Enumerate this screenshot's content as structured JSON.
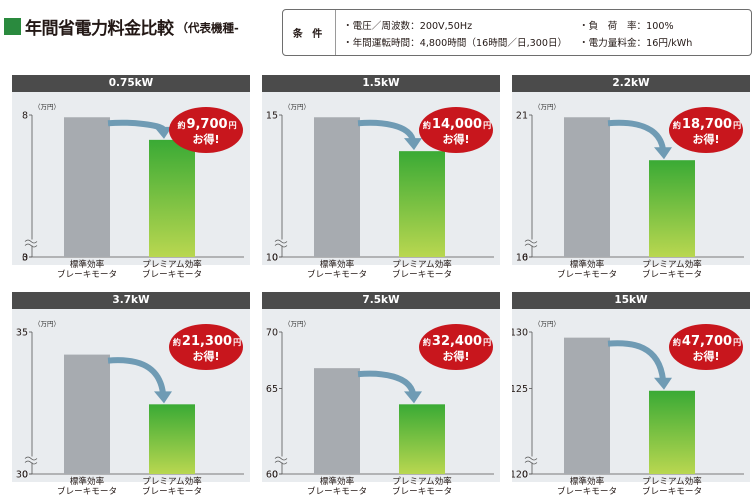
{
  "title": "年間省電力料金比較",
  "title_sub": "（代表機種-",
  "conditions": {
    "label": "条 件",
    "lines": [
      "・電圧／周波数：200V,50Hz",
      "・年間運転時間：4,800時間（16時間／日,300日）",
      "・負　荷　率：100%",
      "・電力量料金：16円/kWh"
    ]
  },
  "unit_label": "（万円）",
  "categories": [
    "標準効率\nブレーキモータ",
    "プレミアム効率\nブレーキモータ"
  ],
  "badge_prefix": "約",
  "badge_suffix": "円",
  "badge_line2": "お得!",
  "colors": {
    "standard_bar": "#a7abb0",
    "premium_bar_top": "#3aaa35",
    "premium_bar_bottom": "#b9d750",
    "badge": "#c8161d",
    "arrow": "#6f9bb4",
    "header": "#4b4b4b",
    "panel": "#e9ecef"
  },
  "chart_data": [
    {
      "type": "bar",
      "title": "0.75kW",
      "categories": [
        "標準効率ブレーキモータ",
        "プレミアム効率ブレーキモータ"
      ],
      "values": [
        7.9,
        6.9
      ],
      "ylim": [
        0,
        8
      ],
      "axis_break": [
        0,
        3
      ],
      "yticks": [
        "8",
        "3",
        "0"
      ],
      "ylabel": "（万円）",
      "saving": "9,700"
    },
    {
      "type": "bar",
      "title": "1.5kW",
      "categories": [
        "標準効率ブレーキモータ",
        "プレミアム効率ブレーキモータ"
      ],
      "values": [
        14.9,
        13.4
      ],
      "ylim": [
        0,
        15
      ],
      "axis_break": [
        0,
        10
      ],
      "yticks": [
        "15",
        "10",
        "0"
      ],
      "ylabel": "（万円）",
      "saving": "14,000"
    },
    {
      "type": "bar",
      "title": "2.2kW",
      "categories": [
        "標準効率ブレーキモータ",
        "プレミアム効率ブレーキモータ"
      ],
      "values": [
        20.9,
        19.0
      ],
      "ylim": [
        0,
        21
      ],
      "axis_break": [
        0,
        16
      ],
      "yticks": [
        "21",
        "16",
        "0"
      ],
      "ylabel": "（万円）",
      "saving": "18,700"
    },
    {
      "type": "bar",
      "title": "3.7kW",
      "categories": [
        "標準効率ブレーキモータ",
        "プレミアム効率ブレーキモータ"
      ],
      "values": [
        34.0,
        31.8
      ],
      "ylim": [
        0,
        35
      ],
      "axis_break": [
        0,
        30
      ],
      "yticks": [
        "35",
        "30",
        "0"
      ],
      "ylabel": "（万円）",
      "saving": "21,300"
    },
    {
      "type": "bar",
      "title": "7.5kW",
      "categories": [
        "標準効率ブレーキモータ",
        "プレミアム効率ブレーキモータ"
      ],
      "values": [
        66.8,
        63.6
      ],
      "ylim": [
        0,
        70
      ],
      "axis_break": [
        0,
        60
      ],
      "yticks": [
        "70",
        "65",
        "60",
        "0"
      ],
      "ylabel": "（万円）",
      "saving": "32,400"
    },
    {
      "type": "bar",
      "title": "15kW",
      "categories": [
        "標準効率ブレーキモータ",
        "プレミアム効率ブレーキモータ"
      ],
      "values": [
        129.5,
        124.8
      ],
      "ylim": [
        0,
        130
      ],
      "axis_break": [
        0,
        120
      ],
      "yticks": [
        "130",
        "125",
        "120",
        "0"
      ],
      "ylabel": "（万円）",
      "saving": "47,700"
    }
  ]
}
